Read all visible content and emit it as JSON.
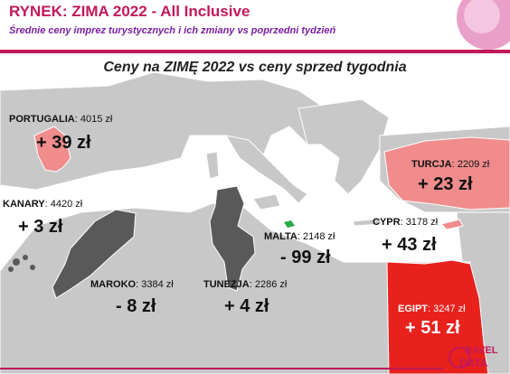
{
  "header": {
    "title": "RYNEK:  ZIMA 2022 - All Inclusive",
    "subtitle": "Średnie ceny imprez turystycznych i ich zmiany vs poprzedni tydzień"
  },
  "map": {
    "heading": "Ceny na ZIMĘ 2022  vs  ceny sprzed tygodnia",
    "destinations": [
      {
        "key": "portugalia",
        "name": "PORTUGALIA",
        "price": "4015 zł",
        "change": "+ 39 zł"
      },
      {
        "key": "turcja",
        "name": "TURCJA",
        "price": "2209 zł",
        "change": "+ 23 zł"
      },
      {
        "key": "kanary",
        "name": "KANARY",
        "price": "4420 zł",
        "change": "+ 3 zł"
      },
      {
        "key": "malta",
        "name": "MALTA",
        "price": "2148 zł",
        "change": "- 99 zł"
      },
      {
        "key": "cypr",
        "name": "CYPR",
        "price": "3178 zł",
        "change": "+ 43 zł"
      },
      {
        "key": "maroko",
        "name": "MAROKO",
        "price": "3384 zł",
        "change": "- 8 zł"
      },
      {
        "key": "tunezja",
        "name": "TUNEZJA",
        "price": "2286 zł",
        "change": "+ 4 zł"
      },
      {
        "key": "egipt",
        "name": "EGIPT",
        "price": "3247 zł",
        "change": "+ 51 zł"
      }
    ],
    "colors": {
      "land": "#c8c8c8",
      "sea": "#ffffff",
      "increase_light": "#f08c8c",
      "increase_strong": "#e8211d",
      "decrease_dark": "#595959",
      "malta": "#2aa84a"
    }
  },
  "footer": {
    "logo_line1": "RAVEL",
    "logo_line2": "DATA"
  }
}
